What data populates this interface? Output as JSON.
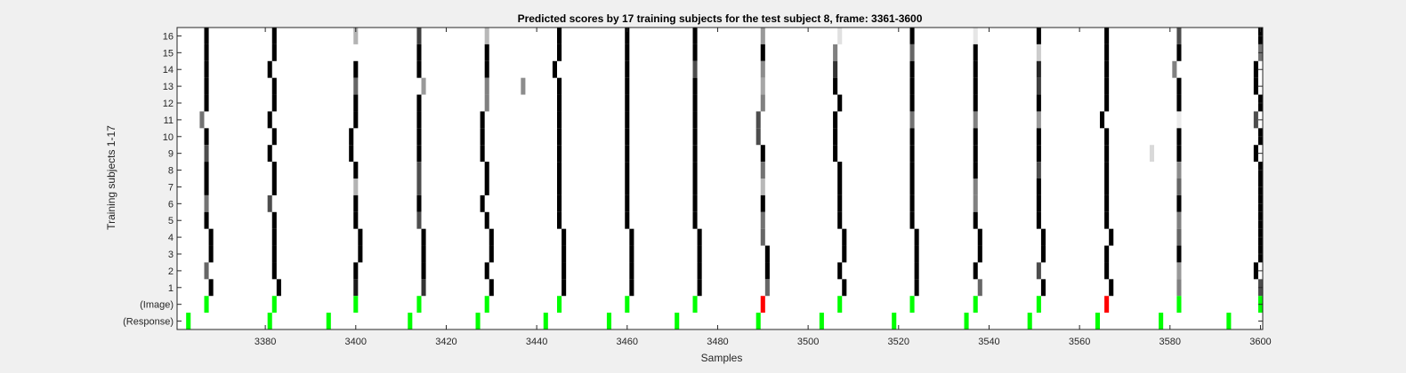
{
  "chart_data": {
    "type": "heatmap",
    "title": "Predicted scores by 17 training subjects for the test subject 8, frame: 3361-3600",
    "xlabel": "Samples",
    "ylabel": "Training subjects 1-17",
    "xlim": [
      3361,
      3600
    ],
    "x_ticks": [
      "3380",
      "3400",
      "3420",
      "3440",
      "3460",
      "3480",
      "3500",
      "3520",
      "3540",
      "3560",
      "3580",
      "3600"
    ],
    "y_tick_labels": [
      "16",
      "15",
      "14",
      "13",
      "12",
      "11",
      "10",
      "9",
      "8",
      "7",
      "6",
      "5",
      "4",
      "3",
      "2",
      "1",
      "(Image)",
      "(Response)"
    ],
    "rows": [
      {
        "label": "16",
        "marks": [
          [
            3367,
            0
          ],
          [
            3382,
            0
          ],
          [
            3400,
            0.7
          ],
          [
            3414,
            0.25
          ],
          [
            3429,
            0.72
          ],
          [
            3445,
            0
          ],
          [
            3460,
            0
          ],
          [
            3475,
            0
          ],
          [
            3490,
            0.6
          ],
          [
            3507,
            0.88
          ],
          [
            3523,
            0
          ],
          [
            3537,
            0.9
          ],
          [
            3551,
            0
          ],
          [
            3566,
            0
          ],
          [
            3582,
            0.3
          ],
          [
            3600,
            0
          ]
        ]
      },
      {
        "label": "15",
        "marks": [
          [
            3367,
            0
          ],
          [
            3382,
            0
          ],
          [
            3414,
            0
          ],
          [
            3429,
            0
          ],
          [
            3445,
            0
          ],
          [
            3460,
            0
          ],
          [
            3475,
            0
          ],
          [
            3490,
            0
          ],
          [
            3506,
            0.5
          ],
          [
            3523,
            0.4
          ],
          [
            3537,
            0
          ],
          [
            3551,
            0.8
          ],
          [
            3566,
            0
          ],
          [
            3582,
            0
          ],
          [
            3600,
            0.45
          ]
        ]
      },
      {
        "label": "14",
        "marks": [
          [
            3367,
            0
          ],
          [
            3381,
            0
          ],
          [
            3400,
            0
          ],
          [
            3414,
            0
          ],
          [
            3429,
            0
          ],
          [
            3444,
            0
          ],
          [
            3460,
            0
          ],
          [
            3475,
            0.3
          ],
          [
            3490,
            0.55
          ],
          [
            3506,
            0.2
          ],
          [
            3523,
            0
          ],
          [
            3537,
            0
          ],
          [
            3551,
            0.15
          ],
          [
            3566,
            0
          ],
          [
            3581,
            0.5
          ],
          [
            3599,
            0
          ]
        ]
      },
      {
        "label": "13",
        "marks": [
          [
            3367,
            0
          ],
          [
            3382,
            0
          ],
          [
            3400,
            0.4
          ],
          [
            3415,
            0.6
          ],
          [
            3429,
            0.5
          ],
          [
            3437,
            0.55
          ],
          [
            3445,
            0
          ],
          [
            3460,
            0
          ],
          [
            3475,
            0
          ],
          [
            3490,
            0.65
          ],
          [
            3506,
            0
          ],
          [
            3523,
            0
          ],
          [
            3537,
            0
          ],
          [
            3551,
            0.25
          ],
          [
            3566,
            0
          ],
          [
            3582,
            0
          ],
          [
            3599,
            0
          ]
        ]
      },
      {
        "label": "12",
        "marks": [
          [
            3367,
            0
          ],
          [
            3382,
            0
          ],
          [
            3400,
            0
          ],
          [
            3414,
            0
          ],
          [
            3429,
            0.5
          ],
          [
            3445,
            0
          ],
          [
            3460,
            0
          ],
          [
            3475,
            0
          ],
          [
            3490,
            0.5
          ],
          [
            3507,
            0
          ],
          [
            3523,
            0
          ],
          [
            3537,
            0
          ],
          [
            3551,
            0
          ],
          [
            3566,
            0
          ],
          [
            3582,
            0
          ],
          [
            3600,
            0
          ]
        ]
      },
      {
        "label": "11",
        "marks": [
          [
            3366,
            0.45
          ],
          [
            3381,
            0
          ],
          [
            3400,
            0
          ],
          [
            3414,
            0
          ],
          [
            3428,
            0
          ],
          [
            3445,
            0
          ],
          [
            3460,
            0
          ],
          [
            3475,
            0
          ],
          [
            3489,
            0.3
          ],
          [
            3506,
            0
          ],
          [
            3523,
            0.45
          ],
          [
            3537,
            0.5
          ],
          [
            3551,
            0.6
          ],
          [
            3565,
            0
          ],
          [
            3582,
            0.92
          ],
          [
            3599,
            0.3
          ]
        ]
      },
      {
        "label": "10",
        "marks": [
          [
            3367,
            0
          ],
          [
            3382,
            0
          ],
          [
            3399,
            0
          ],
          [
            3414,
            0
          ],
          [
            3428,
            0
          ],
          [
            3445,
            0
          ],
          [
            3460,
            0
          ],
          [
            3475,
            0
          ],
          [
            3489,
            0.3
          ],
          [
            3506,
            0
          ],
          [
            3523,
            0
          ],
          [
            3537,
            0
          ],
          [
            3551,
            0
          ],
          [
            3566,
            0
          ],
          [
            3582,
            0
          ],
          [
            3600,
            0
          ]
        ]
      },
      {
        "label": "9",
        "marks": [
          [
            3367,
            0.3
          ],
          [
            3381,
            0
          ],
          [
            3399,
            0
          ],
          [
            3414,
            0
          ],
          [
            3428,
            0
          ],
          [
            3445,
            0
          ],
          [
            3460,
            0
          ],
          [
            3475,
            0
          ],
          [
            3490,
            0
          ],
          [
            3506,
            0
          ],
          [
            3523,
            0
          ],
          [
            3537,
            0
          ],
          [
            3551,
            0
          ],
          [
            3566,
            0
          ],
          [
            3576,
            0.85
          ],
          [
            3582,
            0
          ],
          [
            3599,
            0
          ]
        ]
      },
      {
        "label": "8",
        "marks": [
          [
            3367,
            0
          ],
          [
            3382,
            0
          ],
          [
            3400,
            0
          ],
          [
            3414,
            0.3
          ],
          [
            3429,
            0
          ],
          [
            3445,
            0
          ],
          [
            3460,
            0
          ],
          [
            3475,
            0
          ],
          [
            3490,
            0.45
          ],
          [
            3507,
            0
          ],
          [
            3523,
            0
          ],
          [
            3537,
            0
          ],
          [
            3551,
            0.3
          ],
          [
            3566,
            0
          ],
          [
            3582,
            0.55
          ],
          [
            3600,
            0
          ]
        ]
      },
      {
        "label": "7",
        "marks": [
          [
            3367,
            0
          ],
          [
            3382,
            0
          ],
          [
            3400,
            0.7
          ],
          [
            3414,
            0.3
          ],
          [
            3429,
            0
          ],
          [
            3445,
            0
          ],
          [
            3460,
            0
          ],
          [
            3475,
            0
          ],
          [
            3490,
            0.72
          ],
          [
            3507,
            0
          ],
          [
            3523,
            0
          ],
          [
            3537,
            0.5
          ],
          [
            3551,
            0
          ],
          [
            3566,
            0
          ],
          [
            3582,
            0.4
          ],
          [
            3600,
            0
          ]
        ]
      },
      {
        "label": "6",
        "marks": [
          [
            3367,
            0.45
          ],
          [
            3381,
            0.3
          ],
          [
            3400,
            0
          ],
          [
            3414,
            0
          ],
          [
            3428,
            0
          ],
          [
            3445,
            0
          ],
          [
            3460,
            0
          ],
          [
            3475,
            0
          ],
          [
            3490,
            0
          ],
          [
            3507,
            0
          ],
          [
            3523,
            0
          ],
          [
            3537,
            0.5
          ],
          [
            3551,
            0
          ],
          [
            3566,
            0
          ],
          [
            3582,
            0
          ],
          [
            3600,
            0
          ]
        ]
      },
      {
        "label": "5",
        "marks": [
          [
            3367,
            0
          ],
          [
            3382,
            0
          ],
          [
            3400,
            0
          ],
          [
            3414,
            0.3
          ],
          [
            3429,
            0
          ],
          [
            3445,
            0
          ],
          [
            3460,
            0
          ],
          [
            3475,
            0
          ],
          [
            3490,
            0.45
          ],
          [
            3507,
            0
          ],
          [
            3523,
            0
          ],
          [
            3537,
            0
          ],
          [
            3551,
            0
          ],
          [
            3566,
            0
          ],
          [
            3582,
            0.5
          ],
          [
            3600,
            0
          ]
        ]
      },
      {
        "label": "4",
        "marks": [
          [
            3368,
            0
          ],
          [
            3382,
            0
          ],
          [
            3401,
            0
          ],
          [
            3415,
            0
          ],
          [
            3430,
            0
          ],
          [
            3446,
            0
          ],
          [
            3461,
            0
          ],
          [
            3476,
            0
          ],
          [
            3490,
            0.4
          ],
          [
            3508,
            0
          ],
          [
            3524,
            0
          ],
          [
            3538,
            0
          ],
          [
            3552,
            0
          ],
          [
            3567,
            0
          ],
          [
            3582,
            0.4
          ],
          [
            3600,
            0
          ]
        ]
      },
      {
        "label": "3",
        "marks": [
          [
            3368,
            0
          ],
          [
            3382,
            0
          ],
          [
            3401,
            0
          ],
          [
            3415,
            0
          ],
          [
            3430,
            0
          ],
          [
            3446,
            0
          ],
          [
            3461,
            0
          ],
          [
            3476,
            0
          ],
          [
            3491,
            0
          ],
          [
            3508,
            0
          ],
          [
            3524,
            0
          ],
          [
            3538,
            0
          ],
          [
            3552,
            0
          ],
          [
            3566,
            0
          ],
          [
            3582,
            0
          ],
          [
            3600,
            0
          ]
        ]
      },
      {
        "label": "2",
        "marks": [
          [
            3367,
            0.4
          ],
          [
            3382,
            0
          ],
          [
            3400,
            0
          ],
          [
            3415,
            0
          ],
          [
            3429,
            0
          ],
          [
            3446,
            0
          ],
          [
            3461,
            0
          ],
          [
            3476,
            0
          ],
          [
            3491,
            0
          ],
          [
            3507,
            0
          ],
          [
            3524,
            0
          ],
          [
            3537,
            0
          ],
          [
            3551,
            0.3
          ],
          [
            3566,
            0
          ],
          [
            3582,
            0.6
          ],
          [
            3599,
            0
          ]
        ]
      },
      {
        "label": "1",
        "marks": [
          [
            3368,
            0
          ],
          [
            3383,
            0
          ],
          [
            3400,
            0.1
          ],
          [
            3415,
            0.2
          ],
          [
            3430,
            0
          ],
          [
            3446,
            0
          ],
          [
            3461,
            0
          ],
          [
            3476,
            0
          ],
          [
            3491,
            0.4
          ],
          [
            3508,
            0
          ],
          [
            3524,
            0
          ],
          [
            3538,
            0.4
          ],
          [
            3552,
            0
          ],
          [
            3567,
            0
          ],
          [
            3582,
            0.5
          ],
          [
            3600,
            0.3
          ]
        ]
      }
    ],
    "image_events": [
      [
        3367,
        "#00ff00"
      ],
      [
        3382,
        "#00ff00"
      ],
      [
        3400,
        "#00ff00"
      ],
      [
        3414,
        "#00ff00"
      ],
      [
        3429,
        "#00ff00"
      ],
      [
        3445,
        "#00ff00"
      ],
      [
        3460,
        "#00ff00"
      ],
      [
        3475,
        "#00ff00"
      ],
      [
        3490,
        "#ff0000"
      ],
      [
        3507,
        "#00ff00"
      ],
      [
        3523,
        "#00ff00"
      ],
      [
        3537,
        "#00ff00"
      ],
      [
        3551,
        "#00ff00"
      ],
      [
        3566,
        "#ff0000"
      ],
      [
        3582,
        "#00ff00"
      ],
      [
        3600,
        "#00ff00"
      ]
    ],
    "response_events": [
      3363,
      3381,
      3394,
      3412,
      3427,
      3442,
      3456,
      3471,
      3489,
      3503,
      3519,
      3535,
      3549,
      3564,
      3578,
      3593
    ],
    "event_color": "#00ff00",
    "grid": false
  }
}
